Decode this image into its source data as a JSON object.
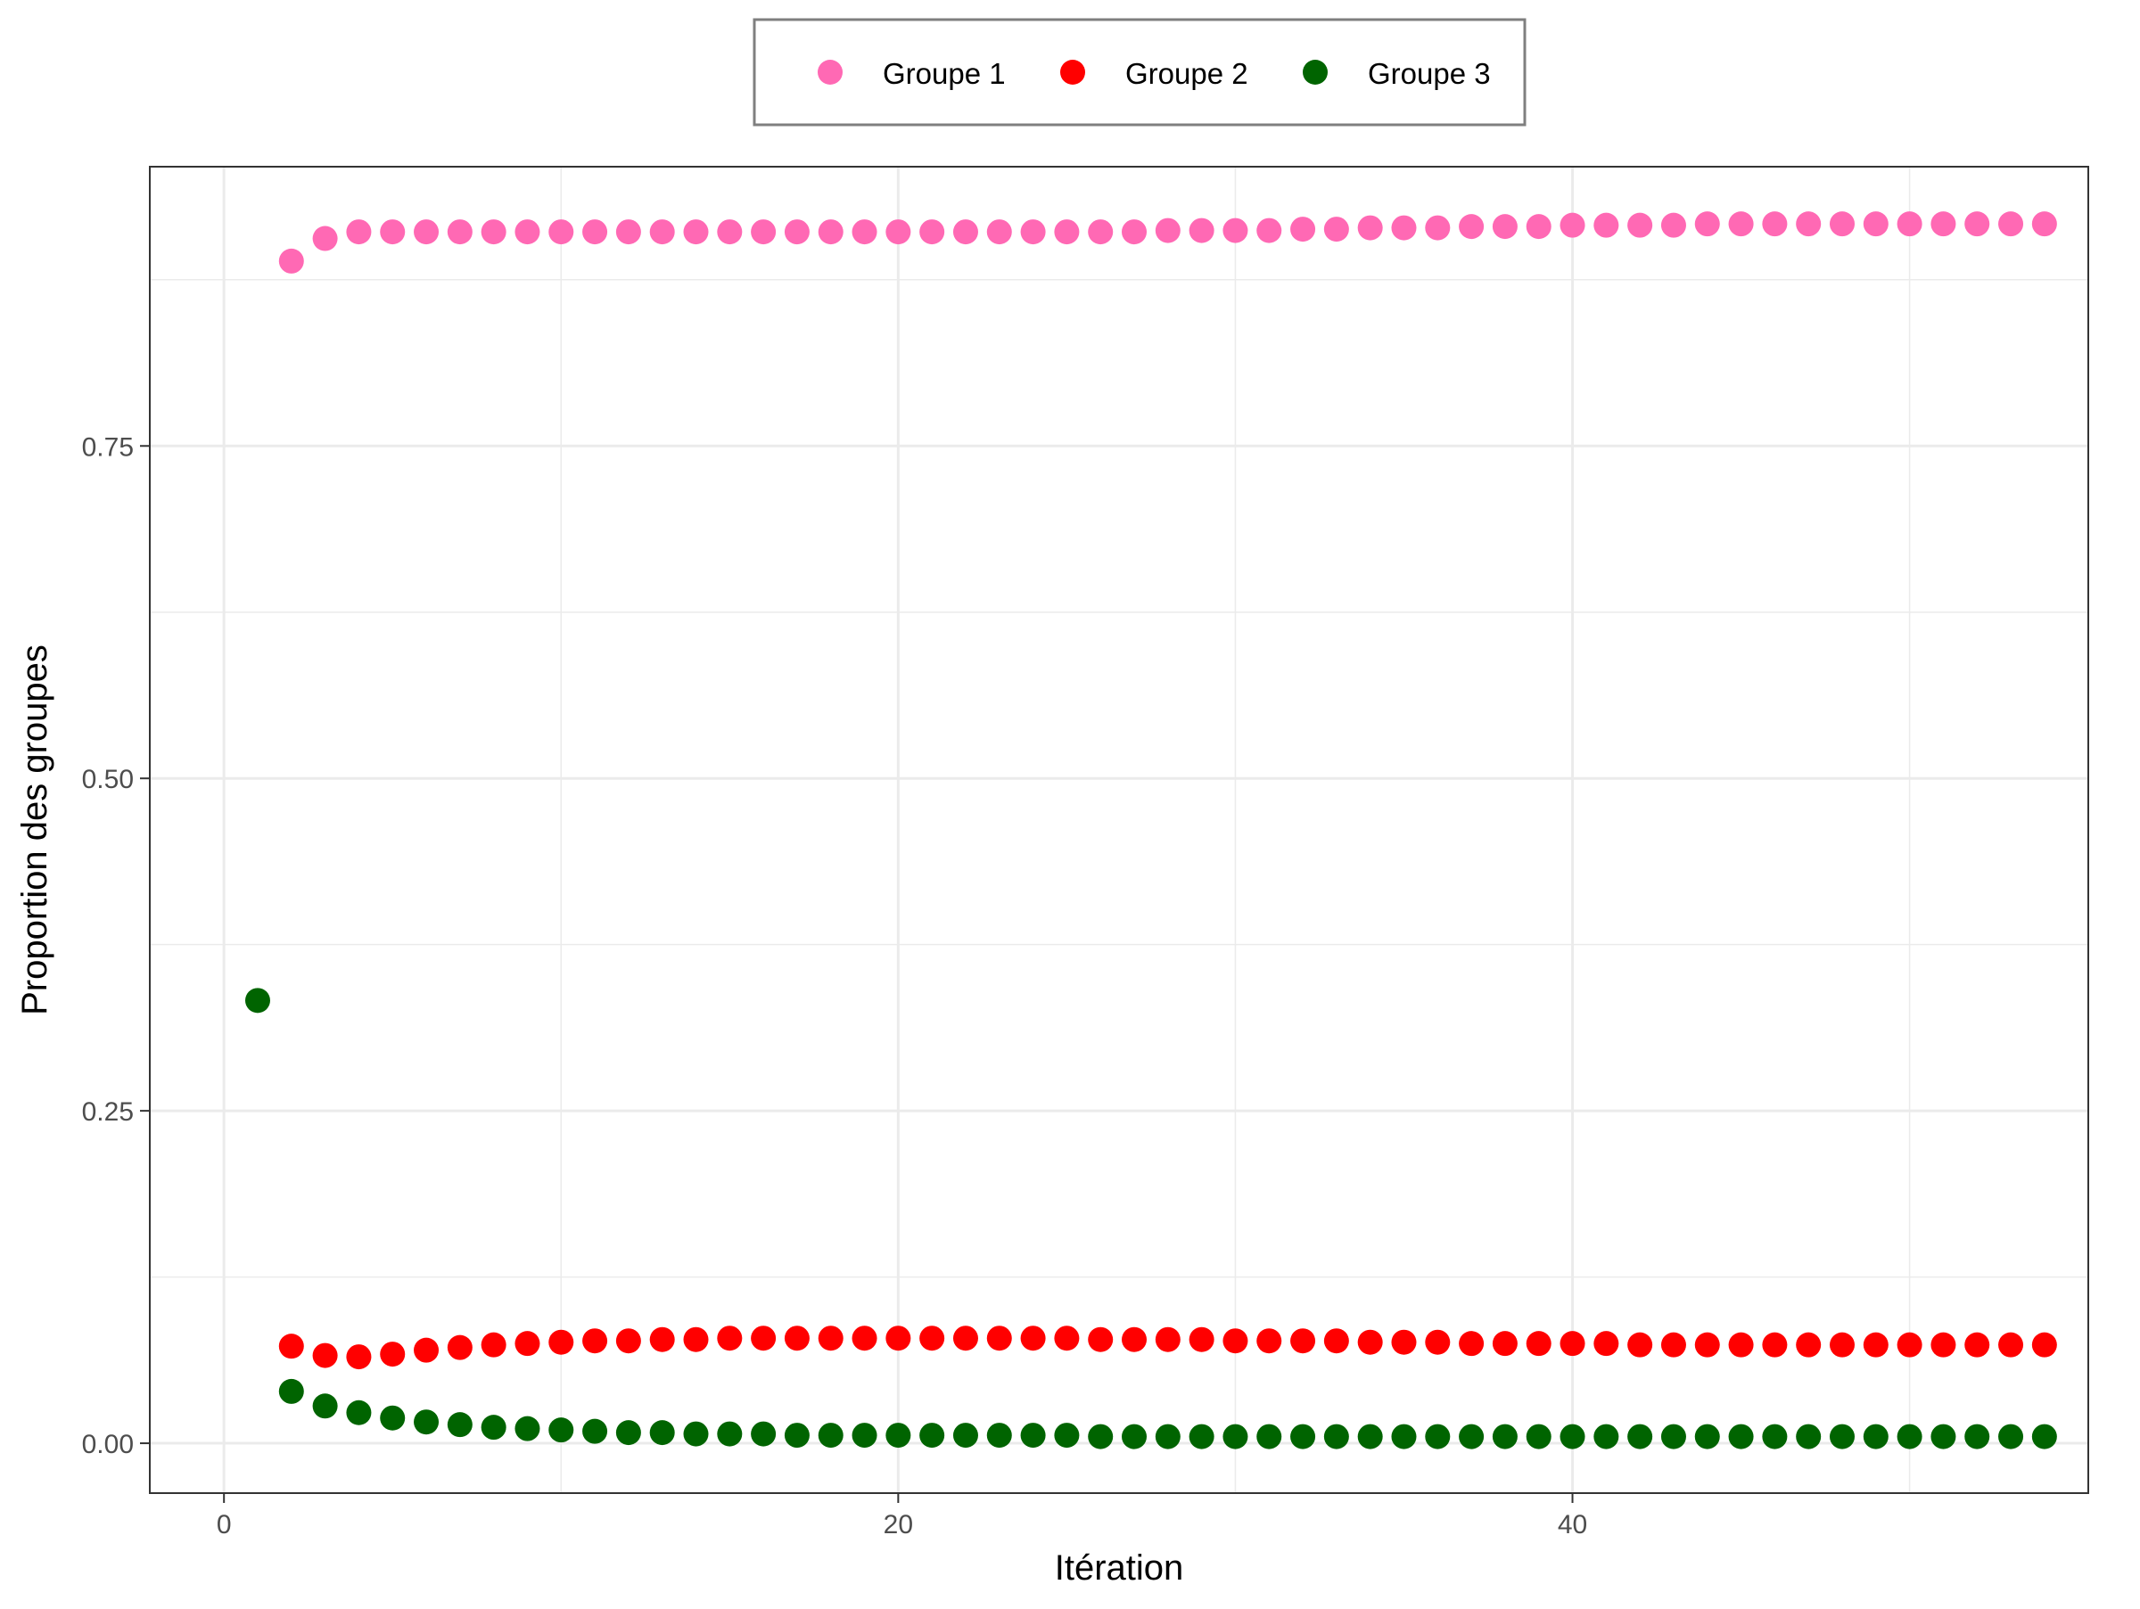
{
  "chart_data": {
    "type": "scatter",
    "xlabel": "Itération",
    "ylabel": "Proportion des groupes",
    "xlim": [
      -2.2,
      55.3
    ],
    "ylim": [
      -0.0375,
      0.96
    ],
    "x_ticks": [
      0,
      20,
      40
    ],
    "x_minor_ticks": [
      10,
      30,
      50
    ],
    "y_ticks": [
      0.0,
      0.25,
      0.5,
      0.75
    ],
    "y_tick_labels": [
      "0.00",
      "0.25",
      "0.50",
      "0.75"
    ],
    "y_minor_ticks": [
      0.125,
      0.375,
      0.625,
      0.875
    ],
    "grid": true,
    "legend_position": "top",
    "series": [
      {
        "name": "Groupe 1",
        "color": "#ff69b4",
        "x": [
          2,
          3,
          4,
          5,
          6,
          7,
          8,
          9,
          10,
          11,
          12,
          13,
          14,
          15,
          16,
          17,
          18,
          19,
          20,
          21,
          22,
          23,
          24,
          25,
          26,
          27,
          28,
          29,
          30,
          31,
          32,
          33,
          34,
          35,
          36,
          37,
          38,
          39,
          40,
          41,
          42,
          43,
          44,
          45,
          46,
          47,
          48,
          49,
          50,
          51,
          52,
          53,
          54
        ],
        "values": [
          0.889,
          0.906,
          0.911,
          0.911,
          0.911,
          0.911,
          0.911,
          0.911,
          0.911,
          0.911,
          0.911,
          0.911,
          0.911,
          0.911,
          0.911,
          0.911,
          0.911,
          0.911,
          0.911,
          0.911,
          0.911,
          0.911,
          0.911,
          0.911,
          0.911,
          0.911,
          0.912,
          0.912,
          0.912,
          0.912,
          0.913,
          0.913,
          0.914,
          0.914,
          0.914,
          0.915,
          0.915,
          0.915,
          0.916,
          0.916,
          0.916,
          0.916,
          0.917,
          0.917,
          0.917,
          0.917,
          0.917,
          0.917,
          0.917,
          0.917,
          0.917,
          0.917,
          0.917
        ]
      },
      {
        "name": "Groupe 2",
        "color": "#ff0000",
        "x": [
          2,
          3,
          4,
          5,
          6,
          7,
          8,
          9,
          10,
          11,
          12,
          13,
          14,
          15,
          16,
          17,
          18,
          19,
          20,
          21,
          22,
          23,
          24,
          25,
          26,
          27,
          28,
          29,
          30,
          31,
          32,
          33,
          34,
          35,
          36,
          37,
          38,
          39,
          40,
          41,
          42,
          43,
          44,
          45,
          46,
          47,
          48,
          49,
          50,
          51,
          52,
          53,
          54
        ],
        "values": [
          0.073,
          0.066,
          0.065,
          0.067,
          0.07,
          0.072,
          0.074,
          0.075,
          0.076,
          0.077,
          0.077,
          0.078,
          0.078,
          0.079,
          0.079,
          0.079,
          0.079,
          0.079,
          0.079,
          0.079,
          0.079,
          0.079,
          0.079,
          0.079,
          0.078,
          0.078,
          0.078,
          0.078,
          0.077,
          0.077,
          0.077,
          0.077,
          0.076,
          0.076,
          0.076,
          0.075,
          0.075,
          0.075,
          0.075,
          0.075,
          0.074,
          0.074,
          0.074,
          0.074,
          0.074,
          0.074,
          0.074,
          0.074,
          0.074,
          0.074,
          0.074,
          0.074,
          0.074
        ]
      },
      {
        "name": "Groupe 3",
        "color": "#006400",
        "x": [
          1,
          2,
          3,
          4,
          5,
          6,
          7,
          8,
          9,
          10,
          11,
          12,
          13,
          14,
          15,
          16,
          17,
          18,
          19,
          20,
          21,
          22,
          23,
          24,
          25,
          26,
          27,
          28,
          29,
          30,
          31,
          32,
          33,
          34,
          35,
          36,
          37,
          38,
          39,
          40,
          41,
          42,
          43,
          44,
          45,
          46,
          47,
          48,
          49,
          50,
          51,
          52,
          53,
          54
        ],
        "values": [
          0.333,
          0.039,
          0.028,
          0.023,
          0.019,
          0.016,
          0.014,
          0.012,
          0.011,
          0.01,
          0.009,
          0.008,
          0.008,
          0.007,
          0.007,
          0.007,
          0.006,
          0.006,
          0.006,
          0.006,
          0.006,
          0.006,
          0.006,
          0.006,
          0.006,
          0.005,
          0.005,
          0.005,
          0.005,
          0.005,
          0.005,
          0.005,
          0.005,
          0.005,
          0.005,
          0.005,
          0.005,
          0.005,
          0.005,
          0.005,
          0.005,
          0.005,
          0.005,
          0.005,
          0.005,
          0.005,
          0.005,
          0.005,
          0.005,
          0.005,
          0.005,
          0.005,
          0.005,
          0.005
        ]
      }
    ]
  }
}
